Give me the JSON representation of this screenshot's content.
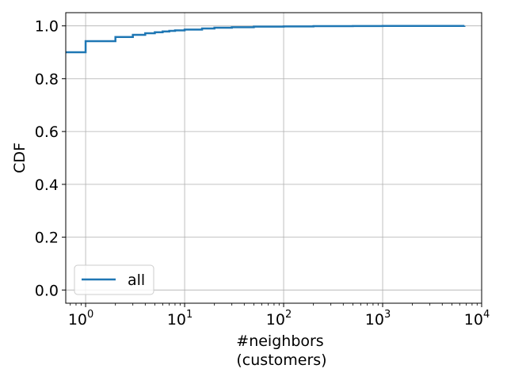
{
  "chart_data": {
    "type": "line",
    "xlabel": "#neighbors",
    "xlabel_line2": "(customers)",
    "ylabel": "CDF",
    "x_scale": "log",
    "xlim": [
      0.63,
      10000
    ],
    "ylim": [
      -0.05,
      1.05
    ],
    "grid": true,
    "legend_position": "lower-left",
    "x_ticks": [
      {
        "base": "10",
        "exp": "0",
        "value": 1
      },
      {
        "base": "10",
        "exp": "1",
        "value": 10
      },
      {
        "base": "10",
        "exp": "2",
        "value": 100
      },
      {
        "base": "10",
        "exp": "3",
        "value": 1000
      },
      {
        "base": "10",
        "exp": "4",
        "value": 10000
      }
    ],
    "y_ticks": [
      "0.0",
      "0.2",
      "0.4",
      "0.6",
      "0.8",
      "1.0"
    ],
    "series": [
      {
        "name": "all",
        "color": "#1f77b4",
        "step": true,
        "x": [
          0.63,
          1,
          2,
          3,
          4,
          5,
          6,
          7,
          8,
          10,
          15,
          20,
          30,
          50,
          100,
          200,
          500,
          1000,
          3000,
          6700
        ],
        "y": [
          0.9,
          0.942,
          0.958,
          0.966,
          0.972,
          0.976,
          0.979,
          0.981,
          0.983,
          0.986,
          0.99,
          0.993,
          0.995,
          0.997,
          0.998,
          0.999,
          0.9995,
          0.9998,
          0.9999,
          1.0
        ]
      }
    ]
  }
}
